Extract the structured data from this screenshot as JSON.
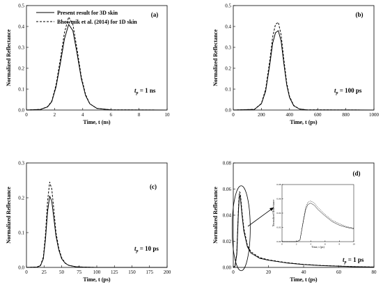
{
  "legend": [
    {
      "label": "Present result for 3D skin",
      "style": "solid"
    },
    {
      "label": "Bhowmik et al. (2014)  for 1D skin",
      "style": "dashed"
    }
  ],
  "chart_data": [
    {
      "id": "a",
      "type": "line",
      "tag": "(a)",
      "xlabel": "Time, t (ns)",
      "ylabel": "Normalized Reflectance",
      "xlim": [
        0,
        10
      ],
      "ylim": [
        0,
        0.5
      ],
      "xticks": [
        "0",
        "2",
        "4",
        "6",
        "8",
        "10"
      ],
      "yticks": [
        "0.0",
        "0.1",
        "0.2",
        "0.3",
        "0.4",
        "0.5"
      ],
      "annotation_main": "t",
      "annotation_sub": "p",
      "annotation_rest": " = 1 ns",
      "series": [
        {
          "style": "solid",
          "x": [
            0,
            1,
            1.5,
            1.8,
            2.1,
            2.4,
            2.7,
            3.0,
            3.3,
            3.6,
            3.9,
            4.2,
            4.5,
            5,
            6,
            10
          ],
          "y": [
            0,
            0.003,
            0.015,
            0.04,
            0.11,
            0.22,
            0.34,
            0.41,
            0.38,
            0.27,
            0.15,
            0.07,
            0.03,
            0.008,
            0.001,
            0
          ]
        },
        {
          "style": "dashed",
          "x": [
            0,
            1,
            1.5,
            1.8,
            2.1,
            2.4,
            2.7,
            3.0,
            3.3,
            3.6,
            3.9,
            4.2,
            4.5,
            5,
            6,
            10
          ],
          "y": [
            0,
            0.003,
            0.016,
            0.043,
            0.12,
            0.24,
            0.37,
            0.445,
            0.41,
            0.29,
            0.16,
            0.075,
            0.03,
            0.008,
            0.001,
            0
          ]
        }
      ]
    },
    {
      "id": "b",
      "type": "line",
      "tag": "(b)",
      "xlabel": "Time, t (ps)",
      "ylabel": "Normalized Reflectance",
      "xlim": [
        0,
        1000
      ],
      "ylim": [
        0,
        0.5
      ],
      "xticks": [
        "0",
        "200",
        "400",
        "600",
        "800",
        "1000"
      ],
      "yticks": [
        "0.0",
        "0.1",
        "0.2",
        "0.3",
        "0.4",
        "0.5"
      ],
      "annotation_main": "t",
      "annotation_sub": "p",
      "annotation_rest": " = 100 ps",
      "series": [
        {
          "style": "solid",
          "x": [
            0,
            150,
            200,
            230,
            260,
            280,
            300,
            320,
            340,
            360,
            380,
            400,
            430,
            470,
            520,
            1000
          ],
          "y": [
            0,
            0.003,
            0.03,
            0.09,
            0.22,
            0.32,
            0.37,
            0.38,
            0.33,
            0.22,
            0.12,
            0.06,
            0.02,
            0.005,
            0.001,
            0
          ]
        },
        {
          "style": "dashed",
          "x": [
            0,
            150,
            200,
            230,
            260,
            280,
            300,
            320,
            340,
            360,
            380,
            400,
            430,
            470,
            520,
            1000
          ],
          "y": [
            0,
            0.003,
            0.032,
            0.1,
            0.24,
            0.35,
            0.41,
            0.42,
            0.36,
            0.24,
            0.13,
            0.065,
            0.022,
            0.005,
            0.001,
            0
          ]
        }
      ]
    },
    {
      "id": "c",
      "type": "line",
      "tag": "(c)",
      "xlabel": "Time, t (ps)",
      "ylabel": "Normalized Reflectance",
      "xlim": [
        0,
        200
      ],
      "ylim": [
        0,
        0.3
      ],
      "xticks": [
        "0",
        "25",
        "50",
        "75",
        "100",
        "125",
        "150",
        "175",
        "200"
      ],
      "yticks": [
        "0.0",
        "0.1",
        "0.2",
        "0.3"
      ],
      "annotation_main": "t",
      "annotation_sub": "p",
      "annotation_rest": " = 10 ps",
      "series": [
        {
          "style": "solid",
          "x": [
            0,
            15,
            20,
            24,
            27,
            30,
            33,
            36,
            39,
            42,
            46,
            50,
            55,
            60,
            70,
            80,
            100,
            200
          ],
          "y": [
            0,
            0.001,
            0.005,
            0.025,
            0.08,
            0.16,
            0.205,
            0.19,
            0.14,
            0.09,
            0.05,
            0.025,
            0.012,
            0.006,
            0.002,
            0.001,
            0,
            0
          ]
        },
        {
          "style": "dashed",
          "x": [
            0,
            15,
            20,
            24,
            27,
            30,
            33,
            36,
            39,
            42,
            46,
            50,
            55,
            60,
            70,
            80,
            100,
            200
          ],
          "y": [
            0,
            0.001,
            0.006,
            0.03,
            0.095,
            0.19,
            0.245,
            0.225,
            0.165,
            0.1,
            0.055,
            0.028,
            0.013,
            0.006,
            0.002,
            0.001,
            0,
            0
          ]
        }
      ]
    },
    {
      "id": "d",
      "type": "line",
      "tag": "(d)",
      "xlabel": "Time, t (ps)",
      "ylabel": "Normalized Reflectance",
      "xlim": [
        0,
        80
      ],
      "ylim": [
        0,
        0.08
      ],
      "xticks": [
        "0",
        "20",
        "40",
        "60",
        "80"
      ],
      "yticks": [
        "0.00",
        "0.02",
        "0.04",
        "0.06",
        "0.08"
      ],
      "annotation_main": "t",
      "annotation_sub": "p",
      "annotation_rest": " = 1 ps",
      "series": [
        {
          "style": "solid",
          "x": [
            0,
            1,
            2,
            3,
            3.5,
            4,
            5,
            6,
            8,
            10,
            15,
            20,
            30,
            40,
            50,
            60,
            70,
            80
          ],
          "y": [
            0,
            0.001,
            0.01,
            0.045,
            0.055,
            0.054,
            0.04,
            0.028,
            0.016,
            0.011,
            0.007,
            0.0055,
            0.0035,
            0.0022,
            0.0014,
            0.0009,
            0.0005,
            0.0003
          ]
        },
        {
          "style": "dashed",
          "x": [
            0,
            1,
            2,
            3,
            3.5,
            4,
            5,
            6,
            8,
            10,
            15,
            20,
            30,
            40,
            50,
            60,
            70,
            80
          ],
          "y": [
            0,
            0.001,
            0.011,
            0.047,
            0.058,
            0.057,
            0.042,
            0.03,
            0.017,
            0.012,
            0.0075,
            0.0058,
            0.0037,
            0.0023,
            0.0015,
            0.001,
            0.0006,
            0.0003
          ]
        }
      ],
      "inset": {
        "ylabel": "Normalized Reflectance",
        "xlabel": "Time, t (ps)",
        "xlim": [
          0,
          10
        ],
        "ylim": [
          0,
          0.08
        ],
        "xticks": [
          "0",
          "2",
          "4",
          "6",
          "8",
          "10"
        ],
        "yticks": [
          "0.00",
          "0.02",
          "0.04",
          "0.06",
          "0.08"
        ],
        "series": [
          {
            "style": "solid",
            "x": [
              0,
              2,
              2.5,
              3,
              3.3,
              3.6,
              4,
              4.5,
              5,
              6,
              7,
              8,
              9,
              10
            ],
            "y": [
              0,
              0,
              0.002,
              0.03,
              0.045,
              0.052,
              0.054,
              0.051,
              0.045,
              0.036,
              0.028,
              0.023,
              0.02,
              0.018
            ]
          },
          {
            "style": "dashed",
            "x": [
              0,
              2,
              2.5,
              3,
              3.3,
              3.6,
              4,
              4.5,
              5,
              6,
              7,
              8,
              9,
              10
            ],
            "y": [
              0,
              0,
              0.002,
              0.032,
              0.048,
              0.055,
              0.057,
              0.054,
              0.048,
              0.038,
              0.03,
              0.025,
              0.021,
              0.019
            ]
          }
        ]
      }
    }
  ]
}
